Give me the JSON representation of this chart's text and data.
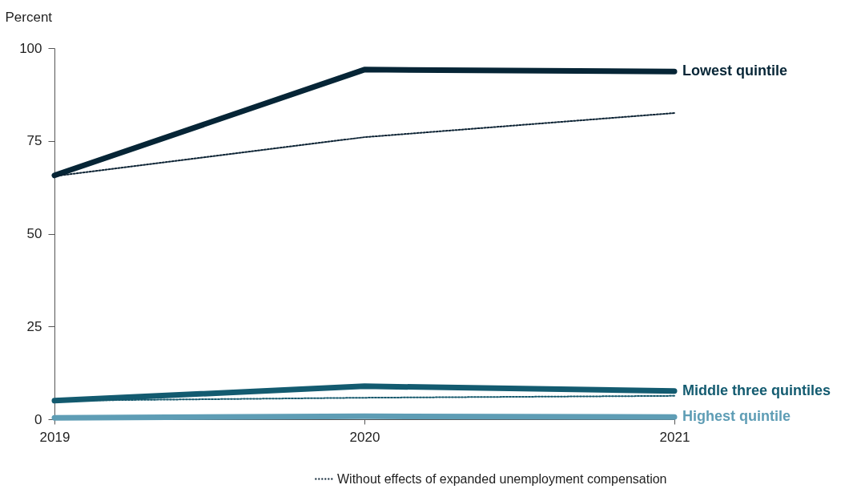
{
  "chart_data": {
    "type": "line",
    "ylabel": "Percent",
    "categories": [
      "2019",
      "2020",
      "2021"
    ],
    "ylim": [
      0,
      100
    ],
    "yticks": [
      0,
      25,
      50,
      75,
      100
    ],
    "grid": false,
    "legend": "bottom right",
    "marker": "none",
    "series": [
      {
        "name": "Lowest quintile",
        "color": "#062536",
        "line_style": "solid",
        "values": [
          65.7,
          94.2,
          93.7
        ]
      },
      {
        "name": "Middle three quintiles",
        "color": "#135b70",
        "line_style": "solid",
        "values": [
          5,
          8.9,
          7.6
        ]
      },
      {
        "name": "Highest quintile",
        "color": "#5e9db5",
        "line_style": "solid",
        "values": [
          0.4,
          0.8,
          0.6
        ]
      },
      {
        "name": "Without effects of expanded unemployment compensation",
        "color": "#0b2233",
        "line_style": "dotted",
        "values": [
          65.5,
          76,
          82.5
        ]
      },
      {
        "color": "#14586c",
        "line_style": "dotted",
        "values": [
          5,
          5.8,
          6.3
        ]
      }
    ]
  }
}
